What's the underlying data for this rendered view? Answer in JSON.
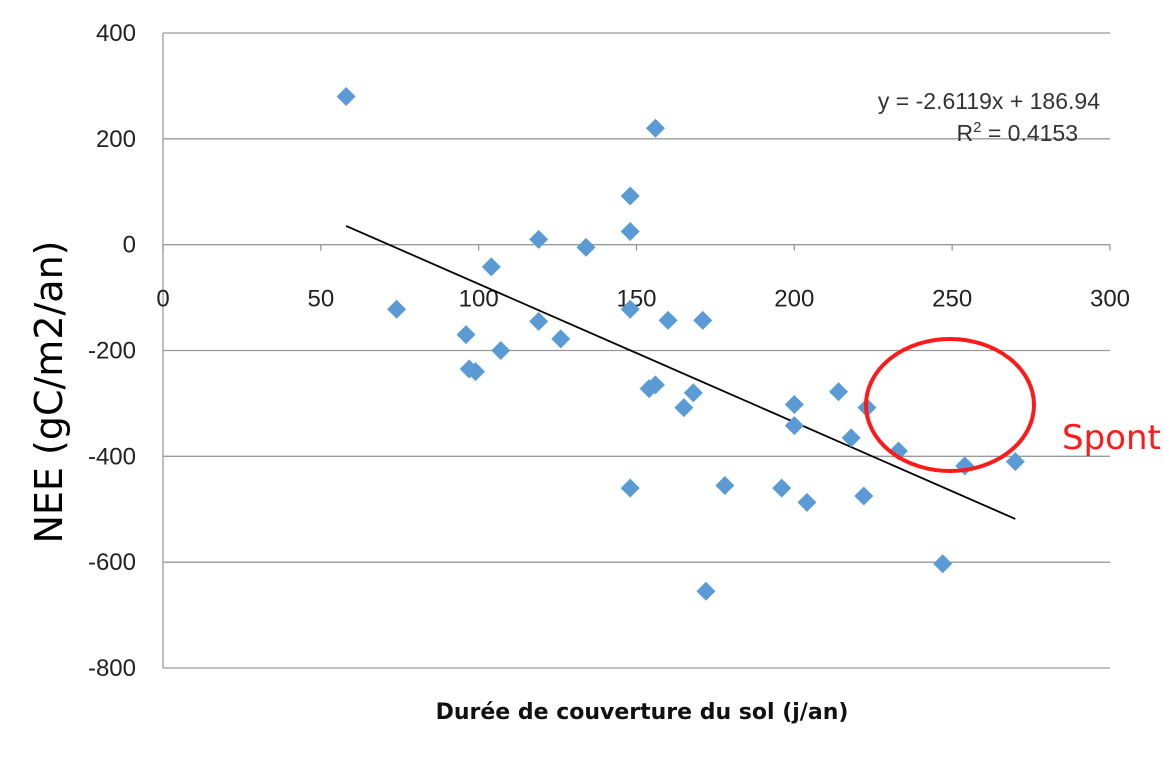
{
  "chart_data": {
    "type": "scatter",
    "xlabel": "Durée de couverture du sol (j/an)",
    "ylabel": "NEE (gC/m2/an)",
    "xlim": [
      0,
      300
    ],
    "ylim": [
      -800,
      400
    ],
    "x_ticks": [
      "0",
      "50",
      "100",
      "150",
      "200",
      "250",
      "300"
    ],
    "y_ticks": [
      "400",
      "200",
      "0",
      "-200",
      "-400",
      "-600",
      "-800"
    ],
    "grid": "horizontal",
    "marker_color": "#5b9bd5",
    "trendline": {
      "slope": -2.6119,
      "intercept": 186.94,
      "x_range": [
        58,
        270
      ],
      "equation": "y = -2.6119x + 186.94",
      "r2_prefix": "R",
      "r2_sup": "2",
      "r2_value": " = 0.4153"
    },
    "annotation": {
      "text": "Spont",
      "color": "#ff1a1a"
    },
    "points": [
      {
        "x": 58,
        "y": 280
      },
      {
        "x": 74,
        "y": -122
      },
      {
        "x": 96,
        "y": -170
      },
      {
        "x": 97,
        "y": -235
      },
      {
        "x": 99,
        "y": -240
      },
      {
        "x": 104,
        "y": -42
      },
      {
        "x": 107,
        "y": -200
      },
      {
        "x": 119,
        "y": 10
      },
      {
        "x": 119,
        "y": -145
      },
      {
        "x": 126,
        "y": -178
      },
      {
        "x": 134,
        "y": -5
      },
      {
        "x": 148,
        "y": 92
      },
      {
        "x": 148,
        "y": 25
      },
      {
        "x": 148,
        "y": -122
      },
      {
        "x": 148,
        "y": -460
      },
      {
        "x": 154,
        "y": -272
      },
      {
        "x": 156,
        "y": -265
      },
      {
        "x": 156,
        "y": 220
      },
      {
        "x": 160,
        "y": -143
      },
      {
        "x": 165,
        "y": -308
      },
      {
        "x": 168,
        "y": -280
      },
      {
        "x": 171,
        "y": -143
      },
      {
        "x": 172,
        "y": -655
      },
      {
        "x": 178,
        "y": -455
      },
      {
        "x": 196,
        "y": -460
      },
      {
        "x": 200,
        "y": -302
      },
      {
        "x": 200,
        "y": -342
      },
      {
        "x": 204,
        "y": -487
      },
      {
        "x": 214,
        "y": -278
      },
      {
        "x": 218,
        "y": -365
      },
      {
        "x": 222,
        "y": -475
      },
      {
        "x": 223,
        "y": -308
      },
      {
        "x": 233,
        "y": -390
      },
      {
        "x": 247,
        "y": -603
      },
      {
        "x": 254,
        "y": -418
      },
      {
        "x": 270,
        "y": -410
      }
    ]
  }
}
